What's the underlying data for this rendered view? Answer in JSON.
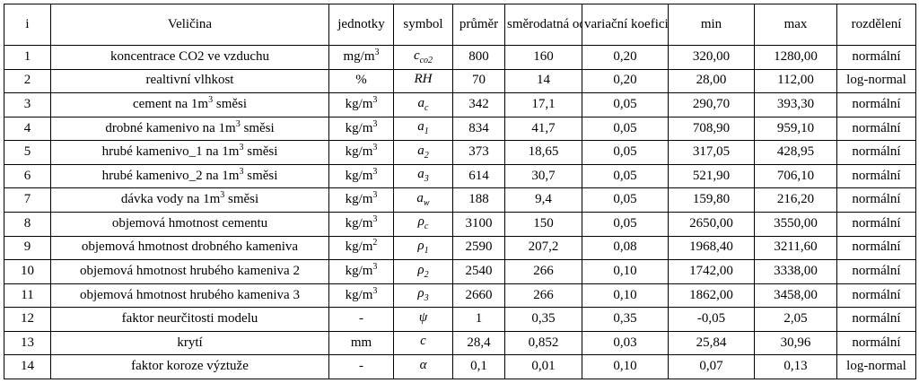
{
  "headers": [
    "i",
    "Veličina",
    "jednotky",
    "symbol",
    "průměr",
    "směrodatná odchylka",
    "variační koeficient",
    "min",
    "max",
    "rozdělení"
  ],
  "rows": [
    {
      "i": "1",
      "name": "koncentrace CO2 ve vzduchu",
      "name_sup": "",
      "name_after": "",
      "unit": "mg/m",
      "unit_sup": "3",
      "sym": "c",
      "sym_sub": "co2",
      "mean": "800",
      "sd": "160",
      "cv": "0,20",
      "min": "320,00",
      "max": "1280,00",
      "dist": "normální"
    },
    {
      "i": "2",
      "name": "realtivní vlhkost",
      "name_sup": "",
      "name_after": "",
      "unit": "%",
      "unit_sup": "",
      "sym": "RH",
      "sym_sub": "",
      "mean": "70",
      "sd": "14",
      "cv": "0,20",
      "min": "28,00",
      "max": "112,00",
      "dist": "log-normal"
    },
    {
      "i": "3",
      "name": "cement na 1m",
      "name_sup": "3",
      "name_after": " směsi",
      "unit": "kg/m",
      "unit_sup": "3",
      "sym": "a",
      "sym_sub": "c",
      "mean": "342",
      "sd": "17,1",
      "cv": "0,05",
      "min": "290,70",
      "max": "393,30",
      "dist": "normální"
    },
    {
      "i": "4",
      "name": "drobné kamenivo na 1m",
      "name_sup": "3",
      "name_after": " směsi",
      "unit": "kg/m",
      "unit_sup": "3",
      "sym": "a",
      "sym_sub": "1",
      "mean": "834",
      "sd": "41,7",
      "cv": "0,05",
      "min": "708,90",
      "max": "959,10",
      "dist": "normální"
    },
    {
      "i": "5",
      "name": "hrubé kamenivo_1 na 1m",
      "name_sup": "3",
      "name_after": " směsi",
      "unit": "kg/m",
      "unit_sup": "3",
      "sym": "a",
      "sym_sub": "2",
      "mean": "373",
      "sd": "18,65",
      "cv": "0,05",
      "min": "317,05",
      "max": "428,95",
      "dist": "normální"
    },
    {
      "i": "6",
      "name": "hrubé kamenivo_2 na 1m",
      "name_sup": "3",
      "name_after": " směsi",
      "unit": "kg/m",
      "unit_sup": "3",
      "sym": "a",
      "sym_sub": "3",
      "mean": "614",
      "sd": "30,7",
      "cv": "0,05",
      "min": "521,90",
      "max": "706,10",
      "dist": "normální"
    },
    {
      "i": "7",
      "name": "dávka vody na 1m",
      "name_sup": "3",
      "name_after": " směsi",
      "unit": "kg/m",
      "unit_sup": "3",
      "sym": "a",
      "sym_sub": "w",
      "mean": "188",
      "sd": "9,4",
      "cv": "0,05",
      "min": "159,80",
      "max": "216,20",
      "dist": "normální"
    },
    {
      "i": "8",
      "name": "objemová hmotnost cementu",
      "name_sup": "",
      "name_after": "",
      "unit": "kg/m",
      "unit_sup": "3",
      "sym": "ρ",
      "sym_sub": "c",
      "mean": "3100",
      "sd": "150",
      "cv": "0,05",
      "min": "2650,00",
      "max": "3550,00",
      "dist": "normální"
    },
    {
      "i": "9",
      "name": "objemová hmotnost drobného kameniva",
      "name_sup": "",
      "name_after": "",
      "unit": "kg/m",
      "unit_sup": "2",
      "sym": "ρ",
      "sym_sub": "1",
      "mean": "2590",
      "sd": "207,2",
      "cv": "0,08",
      "min": "1968,40",
      "max": "3211,60",
      "dist": "normální"
    },
    {
      "i": "10",
      "name": "objemová hmotnost hrubého kameniva 2",
      "name_sup": "",
      "name_after": "",
      "unit": "kg/m",
      "unit_sup": "3",
      "sym": "ρ",
      "sym_sub": "2",
      "mean": "2540",
      "sd": "266",
      "cv": "0,10",
      "min": "1742,00",
      "max": "3338,00",
      "dist": "normální"
    },
    {
      "i": "11",
      "name": "objemová hmotnost hrubého kameniva 3",
      "name_sup": "",
      "name_after": "",
      "unit": "kg/m",
      "unit_sup": "3",
      "sym": "ρ",
      "sym_sub": "3",
      "mean": "2660",
      "sd": "266",
      "cv": "0,10",
      "min": "1862,00",
      "max": "3458,00",
      "dist": "normální"
    },
    {
      "i": "12",
      "name": "faktor neurčitosti modelu",
      "name_sup": "",
      "name_after": "",
      "unit": "-",
      "unit_sup": "",
      "sym": "ψ",
      "sym_sub": "",
      "mean": "1",
      "sd": "0,35",
      "cv": "0,35",
      "min": "-0,05",
      "max": "2,05",
      "dist": "normální"
    },
    {
      "i": "13",
      "name": "krytí",
      "name_sup": "",
      "name_after": "",
      "unit": "mm",
      "unit_sup": "",
      "sym": "c",
      "sym_sub": "",
      "mean": "28,4",
      "sd": "0,852",
      "cv": "0,03",
      "min": "25,84",
      "max": "30,96",
      "dist": "normální"
    },
    {
      "i": "14",
      "name": "faktor koroze výztuže",
      "name_sup": "",
      "name_after": "",
      "unit": "-",
      "unit_sup": "",
      "sym": "α",
      "sym_sub": "",
      "mean": "0,1",
      "sd": "0,01",
      "cv": "0,10",
      "min": "0,07",
      "max": "0,13",
      "dist": "log-normal"
    }
  ]
}
